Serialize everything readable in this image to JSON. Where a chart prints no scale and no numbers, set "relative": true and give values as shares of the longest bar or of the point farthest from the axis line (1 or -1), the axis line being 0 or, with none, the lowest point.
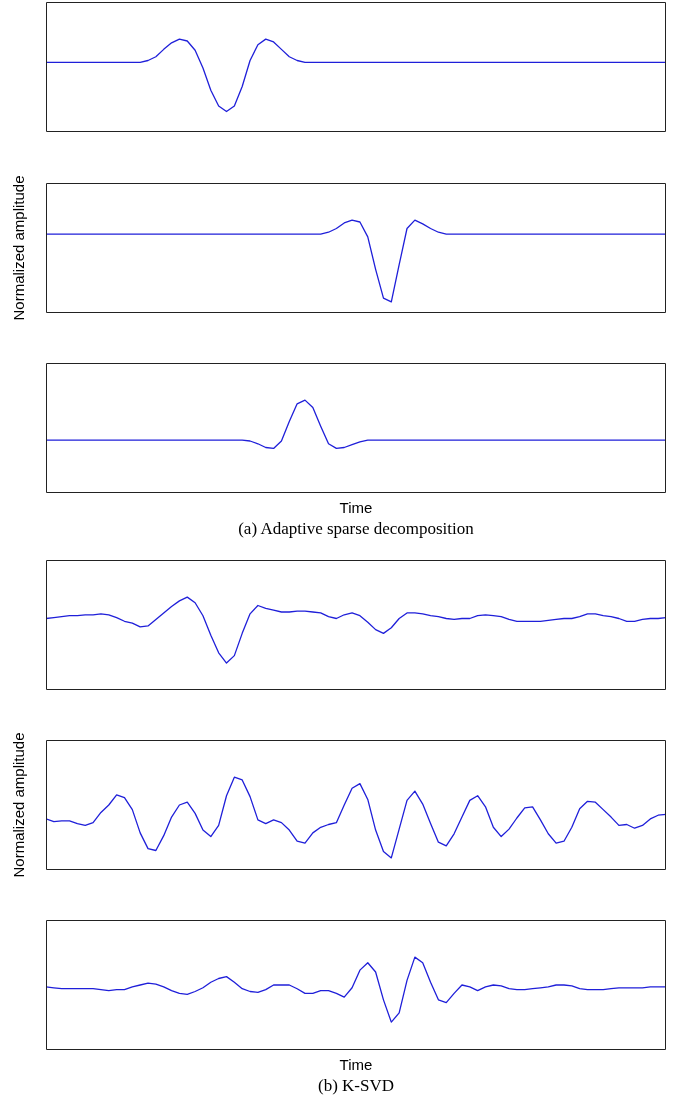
{
  "chart_data": [
    {
      "type": "line",
      "relative": true,
      "categories": [
        null,
        null,
        null,
        null,
        null,
        null,
        null,
        null,
        null,
        null,
        null,
        null,
        null,
        null,
        null,
        null,
        null,
        null,
        null,
        null,
        null,
        null,
        null,
        null,
        null,
        null,
        null,
        null,
        null,
        null,
        null,
        null,
        null,
        null,
        null,
        null,
        null,
        null,
        null,
        null,
        null,
        null,
        null,
        null,
        null,
        null,
        null,
        null,
        null,
        null,
        null,
        null,
        null,
        null,
        null,
        null,
        null,
        null,
        null,
        null,
        null,
        null,
        null,
        null,
        null,
        null,
        null,
        null,
        null,
        null,
        null,
        null,
        null,
        null,
        null,
        null,
        null,
        null,
        null,
        null
      ],
      "series": [
        {
          "color": "#1f1fd9",
          "values": [
            0.75,
            0.75,
            0.75,
            0.75,
            0.75,
            0.75,
            0.75,
            0.75,
            0.75,
            0.75,
            0.75,
            0.75,
            0.75,
            0.77,
            0.81,
            0.89,
            0.96,
            1.0,
            0.98,
            0.88,
            0.69,
            0.45,
            0.28,
            0.22,
            0.28,
            0.49,
            0.77,
            0.94,
            1.0,
            0.97,
            0.89,
            0.81,
            0.77,
            0.75,
            0.75,
            0.75,
            0.75,
            0.75,
            0.75,
            0.75,
            0.75,
            0.75,
            0.75,
            0.75,
            0.75,
            0.75,
            0.75,
            0.75,
            0.75,
            0.75,
            0.75,
            0.75,
            0.75,
            0.75,
            0.75,
            0.75,
            0.75,
            0.75,
            0.75,
            0.75,
            0.75,
            0.75,
            0.75,
            0.75,
            0.75,
            0.75,
            0.75,
            0.75,
            0.75,
            0.75,
            0.75,
            0.75,
            0.75,
            0.75,
            0.75,
            0.75,
            0.75,
            0.75,
            0.75,
            0.75
          ]
        }
      ]
    },
    {
      "type": "line",
      "relative": true,
      "ylabel": "Normalized amplitude",
      "categories": [
        null,
        null,
        null,
        null,
        null,
        null,
        null,
        null,
        null,
        null,
        null,
        null,
        null,
        null,
        null,
        null,
        null,
        null,
        null,
        null,
        null,
        null,
        null,
        null,
        null,
        null,
        null,
        null,
        null,
        null,
        null,
        null,
        null,
        null,
        null,
        null,
        null,
        null,
        null,
        null,
        null,
        null,
        null,
        null,
        null,
        null,
        null,
        null,
        null,
        null,
        null,
        null,
        null,
        null,
        null,
        null,
        null,
        null,
        null,
        null,
        null,
        null,
        null,
        null,
        null,
        null,
        null,
        null,
        null,
        null,
        null,
        null,
        null,
        null,
        null,
        null,
        null,
        null,
        null,
        null
      ],
      "series": [
        {
          "color": "#1f1fd9",
          "values": [
            0.85,
            0.85,
            0.85,
            0.85,
            0.85,
            0.85,
            0.85,
            0.85,
            0.85,
            0.85,
            0.85,
            0.85,
            0.85,
            0.85,
            0.85,
            0.85,
            0.85,
            0.85,
            0.85,
            0.85,
            0.85,
            0.85,
            0.85,
            0.85,
            0.85,
            0.85,
            0.85,
            0.85,
            0.85,
            0.85,
            0.85,
            0.85,
            0.85,
            0.85,
            0.85,
            0.85,
            0.87,
            0.91,
            0.97,
            1.0,
            0.98,
            0.82,
            0.47,
            0.16,
            0.12,
            0.52,
            0.91,
            1.0,
            0.96,
            0.91,
            0.87,
            0.85,
            0.85,
            0.85,
            0.85,
            0.85,
            0.85,
            0.85,
            0.85,
            0.85,
            0.85,
            0.85,
            0.85,
            0.85,
            0.85,
            0.85,
            0.85,
            0.85,
            0.85,
            0.85,
            0.85,
            0.85,
            0.85,
            0.85,
            0.85,
            0.85,
            0.85,
            0.85,
            0.85,
            0.85
          ]
        }
      ]
    },
    {
      "type": "line",
      "relative": true,
      "xlabel": "Time",
      "annotations": [
        "(a) Adaptive sparse decomposition"
      ],
      "categories": [
        null,
        null,
        null,
        null,
        null,
        null,
        null,
        null,
        null,
        null,
        null,
        null,
        null,
        null,
        null,
        null,
        null,
        null,
        null,
        null,
        null,
        null,
        null,
        null,
        null,
        null,
        null,
        null,
        null,
        null,
        null,
        null,
        null,
        null,
        null,
        null,
        null,
        null,
        null,
        null,
        null,
        null,
        null,
        null,
        null,
        null,
        null,
        null,
        null,
        null,
        null,
        null,
        null,
        null,
        null,
        null,
        null,
        null,
        null,
        null,
        null,
        null,
        null,
        null,
        null,
        null,
        null,
        null,
        null,
        null,
        null,
        null,
        null,
        null,
        null,
        null,
        null,
        null,
        null,
        null
      ],
      "series": [
        {
          "color": "#1f1fd9",
          "values": [
            0.57,
            0.57,
            0.57,
            0.57,
            0.57,
            0.57,
            0.57,
            0.57,
            0.57,
            0.57,
            0.57,
            0.57,
            0.57,
            0.57,
            0.57,
            0.57,
            0.57,
            0.57,
            0.57,
            0.57,
            0.57,
            0.57,
            0.57,
            0.57,
            0.57,
            0.57,
            0.56,
            0.53,
            0.49,
            0.48,
            0.56,
            0.77,
            0.96,
            1.0,
            0.92,
            0.72,
            0.53,
            0.48,
            0.49,
            0.52,
            0.55,
            0.57,
            0.57,
            0.57,
            0.57,
            0.57,
            0.57,
            0.57,
            0.57,
            0.57,
            0.57,
            0.57,
            0.57,
            0.57,
            0.57,
            0.57,
            0.57,
            0.57,
            0.57,
            0.57,
            0.57,
            0.57,
            0.57,
            0.57,
            0.57,
            0.57,
            0.57,
            0.57,
            0.57,
            0.57,
            0.57,
            0.57,
            0.57,
            0.57,
            0.57,
            0.57,
            0.57,
            0.57,
            0.57,
            0.57
          ]
        }
      ]
    },
    {
      "type": "line",
      "relative": true,
      "categories": [
        null,
        null,
        null,
        null,
        null,
        null,
        null,
        null,
        null,
        null,
        null,
        null,
        null,
        null,
        null,
        null,
        null,
        null,
        null,
        null,
        null,
        null,
        null,
        null,
        null,
        null,
        null,
        null,
        null,
        null,
        null,
        null,
        null,
        null,
        null,
        null,
        null,
        null,
        null,
        null,
        null,
        null,
        null,
        null,
        null,
        null,
        null,
        null,
        null,
        null,
        null,
        null,
        null,
        null,
        null,
        null,
        null,
        null,
        null,
        null,
        null,
        null,
        null,
        null,
        null,
        null,
        null,
        null,
        null,
        null,
        null,
        null,
        null,
        null,
        null,
        null,
        null,
        null,
        null,
        null
      ],
      "series": [
        {
          "color": "#1f1fd9",
          "values": [
            0.77,
            0.78,
            0.79,
            0.8,
            0.8,
            0.81,
            0.81,
            0.82,
            0.81,
            0.78,
            0.74,
            0.72,
            0.68,
            0.69,
            0.76,
            0.83,
            0.9,
            0.96,
            1.0,
            0.94,
            0.8,
            0.59,
            0.4,
            0.29,
            0.37,
            0.61,
            0.82,
            0.91,
            0.88,
            0.86,
            0.84,
            0.84,
            0.85,
            0.85,
            0.84,
            0.83,
            0.79,
            0.77,
            0.81,
            0.83,
            0.8,
            0.73,
            0.65,
            0.61,
            0.67,
            0.77,
            0.83,
            0.83,
            0.82,
            0.8,
            0.79,
            0.77,
            0.76,
            0.77,
            0.77,
            0.8,
            0.81,
            0.8,
            0.79,
            0.76,
            0.74,
            0.74,
            0.74,
            0.74,
            0.75,
            0.76,
            0.77,
            0.77,
            0.79,
            0.82,
            0.82,
            0.8,
            0.79,
            0.77,
            0.74,
            0.74,
            0.76,
            0.77,
            0.77,
            0.78
          ]
        }
      ]
    },
    {
      "type": "line",
      "relative": true,
      "ylabel": "Normalized amplitude",
      "categories": [
        null,
        null,
        null,
        null,
        null,
        null,
        null,
        null,
        null,
        null,
        null,
        null,
        null,
        null,
        null,
        null,
        null,
        null,
        null,
        null,
        null,
        null,
        null,
        null,
        null,
        null,
        null,
        null,
        null,
        null,
        null,
        null,
        null,
        null,
        null,
        null,
        null,
        null,
        null,
        null,
        null,
        null,
        null,
        null,
        null,
        null,
        null,
        null,
        null,
        null,
        null,
        null,
        null,
        null,
        null,
        null,
        null,
        null,
        null,
        null,
        null,
        null,
        null,
        null,
        null,
        null,
        null,
        null,
        null,
        null,
        null,
        null,
        null,
        null,
        null,
        null,
        null,
        null,
        null,
        null
      ],
      "series": [
        {
          "color": "#1f1fd9",
          "values": [
            0.55,
            0.52,
            0.53,
            0.53,
            0.5,
            0.48,
            0.51,
            0.62,
            0.7,
            0.81,
            0.78,
            0.65,
            0.4,
            0.23,
            0.21,
            0.37,
            0.57,
            0.7,
            0.73,
            0.61,
            0.43,
            0.36,
            0.48,
            0.8,
            1.0,
            0.97,
            0.79,
            0.54,
            0.5,
            0.54,
            0.51,
            0.43,
            0.31,
            0.29,
            0.4,
            0.46,
            0.49,
            0.51,
            0.7,
            0.88,
            0.93,
            0.76,
            0.43,
            0.2,
            0.13,
            0.44,
            0.75,
            0.85,
            0.71,
            0.5,
            0.3,
            0.26,
            0.39,
            0.57,
            0.75,
            0.8,
            0.68,
            0.46,
            0.36,
            0.44,
            0.56,
            0.67,
            0.68,
            0.54,
            0.39,
            0.29,
            0.31,
            0.46,
            0.66,
            0.74,
            0.73,
            0.65,
            0.57,
            0.48,
            0.49,
            0.45,
            0.48,
            0.55,
            0.59,
            0.6
          ]
        }
      ]
    },
    {
      "type": "line",
      "relative": true,
      "xlabel": "Time",
      "annotations": [
        "(b) K-SVD"
      ],
      "categories": [
        null,
        null,
        null,
        null,
        null,
        null,
        null,
        null,
        null,
        null,
        null,
        null,
        null,
        null,
        null,
        null,
        null,
        null,
        null,
        null,
        null,
        null,
        null,
        null,
        null,
        null,
        null,
        null,
        null,
        null,
        null,
        null,
        null,
        null,
        null,
        null,
        null,
        null,
        null,
        null,
        null,
        null,
        null,
        null,
        null,
        null,
        null,
        null,
        null,
        null,
        null,
        null,
        null,
        null,
        null,
        null,
        null,
        null,
        null,
        null,
        null,
        null,
        null,
        null,
        null,
        null,
        null,
        null,
        null,
        null,
        null,
        null,
        null,
        null,
        null,
        null,
        null,
        null,
        null,
        null
      ],
      "series": [
        {
          "color": "#1f1fd9",
          "values": [
            0.68,
            0.67,
            0.66,
            0.66,
            0.66,
            0.66,
            0.66,
            0.65,
            0.64,
            0.65,
            0.65,
            0.68,
            0.7,
            0.72,
            0.71,
            0.68,
            0.64,
            0.61,
            0.6,
            0.63,
            0.67,
            0.73,
            0.77,
            0.79,
            0.73,
            0.66,
            0.63,
            0.62,
            0.65,
            0.7,
            0.7,
            0.7,
            0.66,
            0.61,
            0.61,
            0.64,
            0.64,
            0.61,
            0.57,
            0.67,
            0.86,
            0.94,
            0.84,
            0.54,
            0.3,
            0.4,
            0.75,
            1.0,
            0.94,
            0.73,
            0.54,
            0.51,
            0.61,
            0.7,
            0.68,
            0.64,
            0.68,
            0.7,
            0.69,
            0.66,
            0.65,
            0.65,
            0.66,
            0.67,
            0.68,
            0.7,
            0.7,
            0.69,
            0.66,
            0.65,
            0.65,
            0.65,
            0.66,
            0.67,
            0.67,
            0.67,
            0.67,
            0.68,
            0.68,
            0.68
          ]
        }
      ]
    }
  ]
}
